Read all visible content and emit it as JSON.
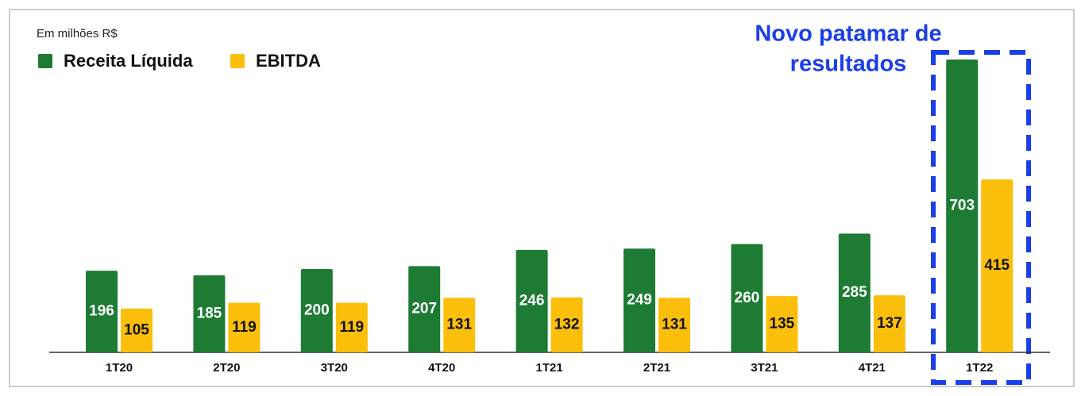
{
  "chart_data": {
    "type": "bar",
    "unit_label": "Em milhões R$",
    "annotation": [
      "Novo patamar de",
      "resultados"
    ],
    "categories": [
      "1T20",
      "2T20",
      "3T20",
      "4T20",
      "1T21",
      "2T21",
      "3T21",
      "4T21",
      "1T22"
    ],
    "series": [
      {
        "name": "Receita Líquida",
        "color": "#1e7b34",
        "values": [
          196,
          185,
          200,
          207,
          246,
          249,
          260,
          285,
          703
        ]
      },
      {
        "name": "EBITDA",
        "color": "#fbbf0b",
        "values": [
          105,
          119,
          119,
          131,
          132,
          131,
          135,
          137,
          415
        ]
      }
    ],
    "legend": "top-left"
  }
}
